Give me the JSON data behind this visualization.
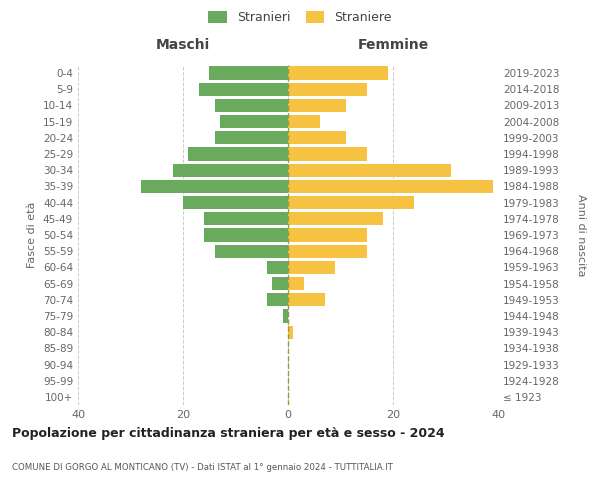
{
  "age_groups": [
    "100+",
    "95-99",
    "90-94",
    "85-89",
    "80-84",
    "75-79",
    "70-74",
    "65-69",
    "60-64",
    "55-59",
    "50-54",
    "45-49",
    "40-44",
    "35-39",
    "30-34",
    "25-29",
    "20-24",
    "15-19",
    "10-14",
    "5-9",
    "0-4"
  ],
  "birth_years": [
    "≤ 1923",
    "1924-1928",
    "1929-1933",
    "1934-1938",
    "1939-1943",
    "1944-1948",
    "1949-1953",
    "1954-1958",
    "1959-1963",
    "1964-1968",
    "1969-1973",
    "1974-1978",
    "1979-1983",
    "1984-1988",
    "1989-1993",
    "1994-1998",
    "1999-2003",
    "2004-2008",
    "2009-2013",
    "2014-2018",
    "2019-2023"
  ],
  "males": [
    0,
    0,
    0,
    0,
    0,
    1,
    4,
    3,
    4,
    14,
    16,
    16,
    20,
    28,
    22,
    19,
    14,
    13,
    14,
    17,
    15
  ],
  "females": [
    0,
    0,
    0,
    0,
    1,
    0,
    7,
    3,
    9,
    15,
    15,
    18,
    24,
    39,
    31,
    15,
    11,
    6,
    11,
    15,
    19
  ],
  "male_color": "#6aaa5e",
  "female_color": "#f5c242",
  "title": "Popolazione per cittadinanza straniera per età e sesso - 2024",
  "subtitle": "COMUNE DI GORGO AL MONTICANO (TV) - Dati ISTAT al 1° gennaio 2024 - TUTTITALIA.IT",
  "left_label": "Maschi",
  "right_label": "Femmine",
  "left_axis_label": "Fasce di età",
  "right_axis_label": "Anni di nascita",
  "legend_male": "Stranieri",
  "legend_female": "Straniere",
  "xlim": 40,
  "background_color": "#ffffff",
  "grid_color": "#cccccc",
  "bar_height": 0.82
}
